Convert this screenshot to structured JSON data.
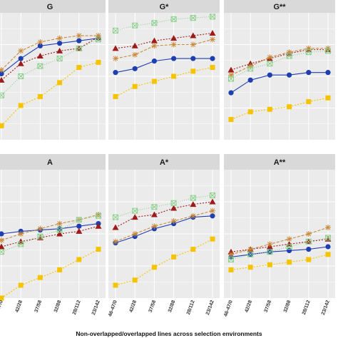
{
  "chart_data": {
    "type": "line",
    "xlabel": "Non-overlapped/overlapped lines across selection environments",
    "categories": [
      "46-47/0",
      "42/28",
      "37/58",
      "32/88",
      "28/112",
      "23/142"
    ],
    "grid": true,
    "background": "#ebebeb",
    "strip_color": "#d9d9d9",
    "panels": [
      {
        "title": "G",
        "ylim": [
          0,
          100
        ],
        "series": [
          {
            "key": "yellow",
            "values": [
              11,
              27,
              34,
              45,
              57,
              61
            ]
          },
          {
            "key": "blue",
            "values": [
              52,
              64,
              74,
              76,
              78,
              80
            ]
          },
          {
            "key": "red",
            "values": [
              47,
              60,
              66,
              70,
              72,
              81
            ]
          },
          {
            "key": "orange",
            "values": [
              55,
              70,
              77,
              80,
              82,
              82
            ]
          },
          {
            "key": "green",
            "values": [
              35,
              50,
              58,
              64,
              72,
              79
            ]
          }
        ]
      },
      {
        "title": "G*",
        "ylim": [
          0,
          100
        ],
        "series": [
          {
            "key": "yellow",
            "values": [
              34,
              42,
              46,
              50,
              54,
              57
            ]
          },
          {
            "key": "blue",
            "values": [
              53,
              56,
              62,
              64,
              64,
              64
            ]
          },
          {
            "key": "red",
            "values": [
              72,
              74,
              78,
              80,
              82,
              84
            ]
          },
          {
            "key": "orange",
            "values": [
              64,
              67,
              74,
              75,
              75,
              79
            ]
          },
          {
            "key": "green",
            "values": [
              86,
              90,
              92,
              95,
              96,
              97
            ]
          }
        ]
      },
      {
        "title": "G**",
        "ylim": [
          0,
          100
        ],
        "series": [
          {
            "key": "yellow",
            "values": [
              16,
              22,
              24,
              26,
              30,
              33
            ]
          },
          {
            "key": "blue",
            "values": [
              37,
              47,
              51,
              51,
              53,
              53
            ]
          },
          {
            "key": "red",
            "values": [
              55,
              60,
              64,
              68,
              71,
              71
            ]
          },
          {
            "key": "orange",
            "values": [
              51,
              58,
              65,
              69,
              72,
              72
            ]
          },
          {
            "key": "green",
            "values": [
              48,
              56,
              60,
              66,
              69,
              70
            ]
          }
        ]
      },
      {
        "title": "A",
        "ylim": [
          0,
          100
        ],
        "series": [
          {
            "key": "yellow",
            "values": [
              0,
              10,
              16,
              22,
              30,
              38
            ]
          },
          {
            "key": "blue",
            "values": [
              50,
              52,
              53,
              54,
              56,
              58
            ]
          },
          {
            "key": "red",
            "values": [
              40,
              44,
              47,
              50,
              52,
              56
            ]
          },
          {
            "key": "orange",
            "values": [
              45,
              50,
              54,
              58,
              61,
              65
            ]
          },
          {
            "key": "green",
            "values": [
              36,
              42,
              48,
              53,
              61,
              64
            ]
          }
        ]
      },
      {
        "title": "A*",
        "ylim": [
          0,
          100
        ],
        "series": [
          {
            "key": "yellow",
            "values": [
              10,
              14,
              24,
              32,
              38,
              46
            ]
          },
          {
            "key": "blue",
            "values": [
              43,
              48,
              54,
              58,
              63,
              64
            ]
          },
          {
            "key": "red",
            "values": [
              55,
              63,
              65,
              70,
              73,
              75
            ]
          },
          {
            "key": "orange",
            "values": [
              44,
              50,
              56,
              60,
              64,
              68
            ]
          },
          {
            "key": "green",
            "values": [
              63,
              68,
              71,
              74,
              78,
              80
            ]
          }
        ]
      },
      {
        "title": "A**",
        "ylim": [
          0,
          100
        ],
        "series": [
          {
            "key": "yellow",
            "values": [
              22,
              24,
              26,
              28,
              30,
              34
            ]
          },
          {
            "key": "blue",
            "values": [
              32,
              34,
              36,
              37,
              38,
              40
            ]
          },
          {
            "key": "red",
            "values": [
              36,
              38,
              40,
              42,
              44,
              46
            ]
          },
          {
            "key": "orange",
            "values": [
              34,
              38,
              42,
              46,
              50,
              55
            ]
          },
          {
            "key": "green",
            "values": [
              30,
              34,
              36,
              40,
              44,
              47
            ]
          }
        ]
      }
    ],
    "series_styles": {
      "yellow": {
        "color": "#f5c400",
        "marker": "square",
        "dash": "2,2"
      },
      "blue": {
        "color": "#1f3fb0",
        "marker": "circle",
        "dash": ""
      },
      "red": {
        "color": "#9e1b1b",
        "marker": "triangle",
        "dash": "2,2"
      },
      "orange": {
        "color": "#c98a3a",
        "marker": "asterisk",
        "dash": "4,2"
      },
      "green": {
        "color": "#8ccf8c",
        "marker": "boxed-x",
        "dash": "1,2"
      }
    }
  }
}
